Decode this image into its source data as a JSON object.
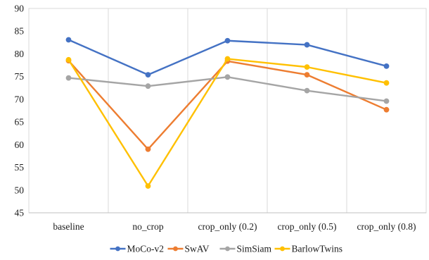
{
  "chart_data": {
    "type": "line",
    "title": "",
    "xlabel": "",
    "ylabel": "",
    "categories": [
      "baseline",
      "no_crop",
      "crop_only (0.2)",
      "crop_only (0.5)",
      "crop_only (0.8)"
    ],
    "ylim": [
      45,
      90
    ],
    "yticks": [
      45,
      50,
      55,
      60,
      65,
      70,
      75,
      80,
      85,
      90
    ],
    "grid": {
      "vertical": true,
      "horizontal": false
    },
    "legend_position": "bottom",
    "series": [
      {
        "name": "MoCo-v2",
        "color": "#4472c4",
        "values": [
          83.1,
          75.4,
          82.9,
          82.0,
          77.3
        ]
      },
      {
        "name": "SwAV",
        "color": "#ed7d31",
        "values": [
          78.5,
          59.0,
          78.4,
          75.4,
          67.7
        ]
      },
      {
        "name": "SimSiam",
        "color": "#a5a5a5",
        "values": [
          74.7,
          72.9,
          74.9,
          71.9,
          69.6
        ]
      },
      {
        "name": "BarlowTwins",
        "color": "#ffc000",
        "values": [
          78.7,
          50.9,
          78.9,
          77.1,
          73.6
        ]
      }
    ]
  }
}
